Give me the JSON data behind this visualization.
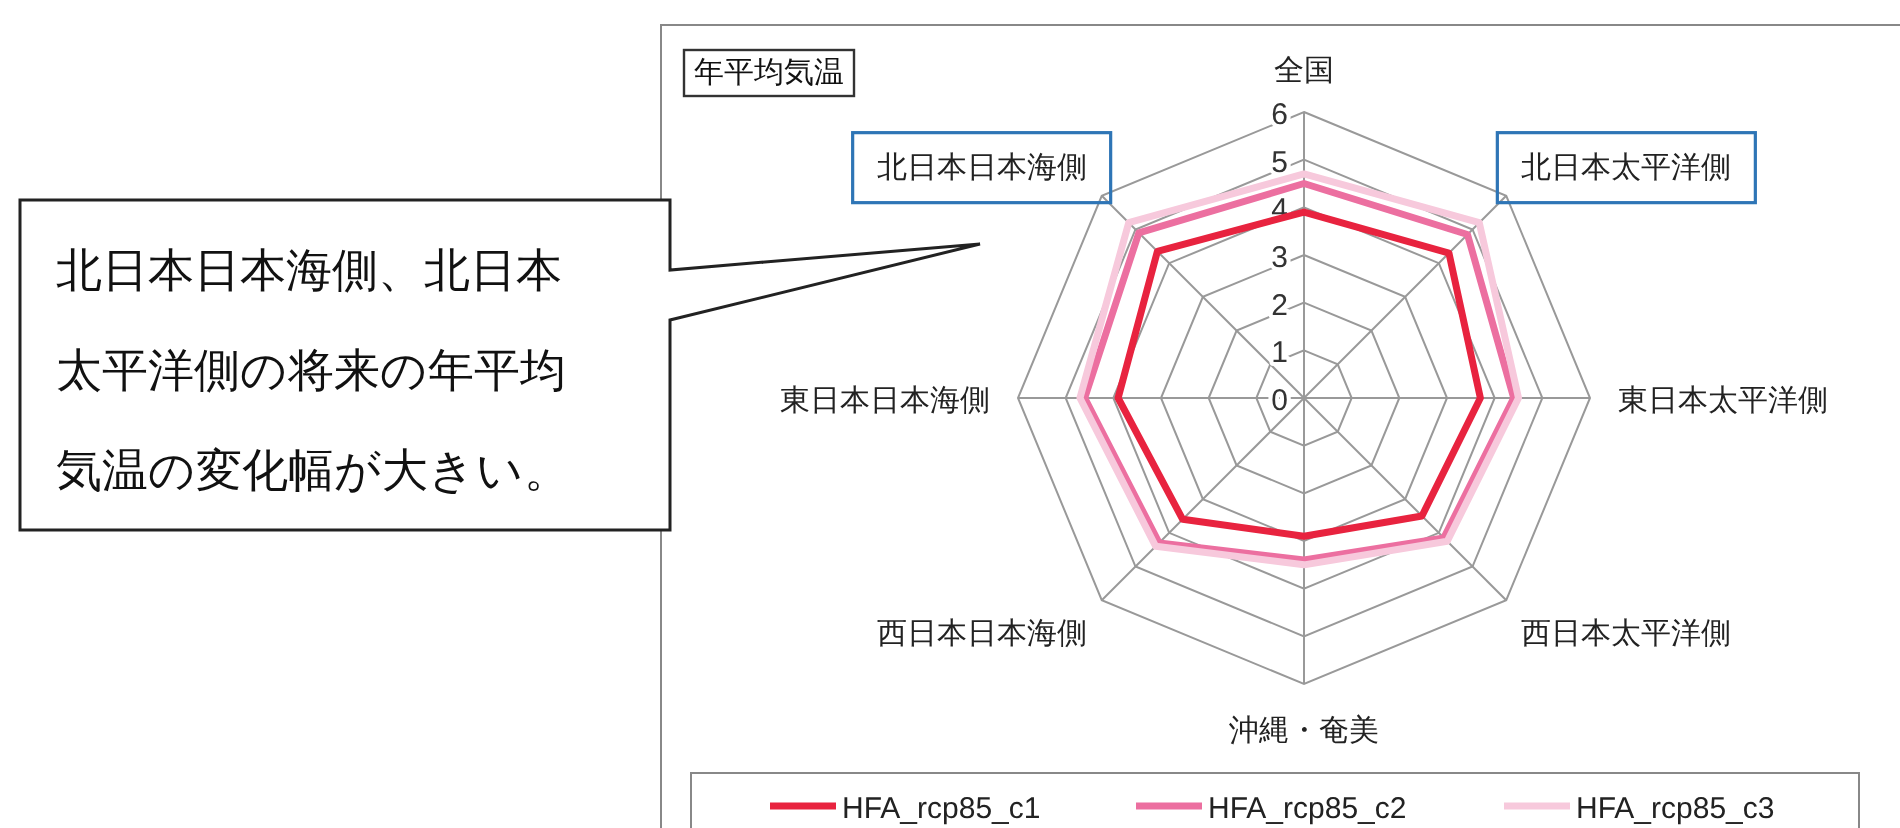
{
  "chart_data": {
    "type": "radar",
    "title": "年平均気温",
    "categories": [
      "全国",
      "北日本太平洋側",
      "東日本太平洋側",
      "西日本太平洋側",
      "沖縄・奄美",
      "西日本日本海側",
      "東日本日本海側",
      "北日本日本海側"
    ],
    "series": [
      {
        "name": "HFA_rcp85_c1",
        "color": "#e8233f",
        "values": [
          3.9,
          4.3,
          3.7,
          3.5,
          2.9,
          3.6,
          3.9,
          4.35
        ]
      },
      {
        "name": "HFA_rcp85_c2",
        "color": "#ec6fa0",
        "values": [
          4.5,
          4.85,
          4.4,
          4.15,
          3.4,
          4.3,
          4.6,
          4.9
        ]
      },
      {
        "name": "HFA_rcp85_c3",
        "color": "#f7c9dc",
        "values": [
          4.7,
          5.2,
          4.5,
          4.25,
          3.5,
          4.4,
          4.7,
          5.2
        ]
      }
    ],
    "ylim": [
      0,
      6
    ],
    "yticks": [
      0,
      1,
      2,
      3,
      4,
      5,
      6
    ],
    "legend": "bottom",
    "annotations": [
      "北日本日本海側、北日本太平洋側の将来の年平均気温の変化幅が大きい。"
    ]
  }
}
